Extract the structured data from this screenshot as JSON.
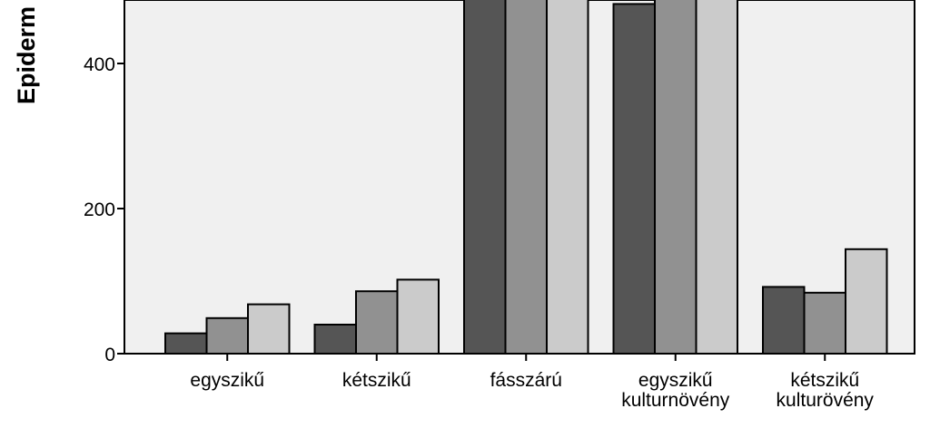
{
  "chart_data": {
    "type": "bar",
    "ylabel": "Epiderm",
    "ylim": [
      0,
      480
    ],
    "yticks": [
      0,
      200,
      400
    ],
    "grid": false,
    "categories": [
      [
        "egyszikű"
      ],
      [
        "kétszikű"
      ],
      [
        "fásszárú"
      ],
      [
        "egyszikű",
        "kulturnövény"
      ],
      [
        "kétszikű",
        "kulturövény"
      ]
    ],
    "series": [
      {
        "color": "#555555",
        "values": [
          28,
          40,
          500,
          482,
          92
        ]
      },
      {
        "color": "#919191",
        "values": [
          49,
          86,
          500,
          500,
          84
        ]
      },
      {
        "color": "#cbcbcb",
        "values": [
          68,
          102,
          500,
          500,
          144
        ]
      }
    ]
  }
}
